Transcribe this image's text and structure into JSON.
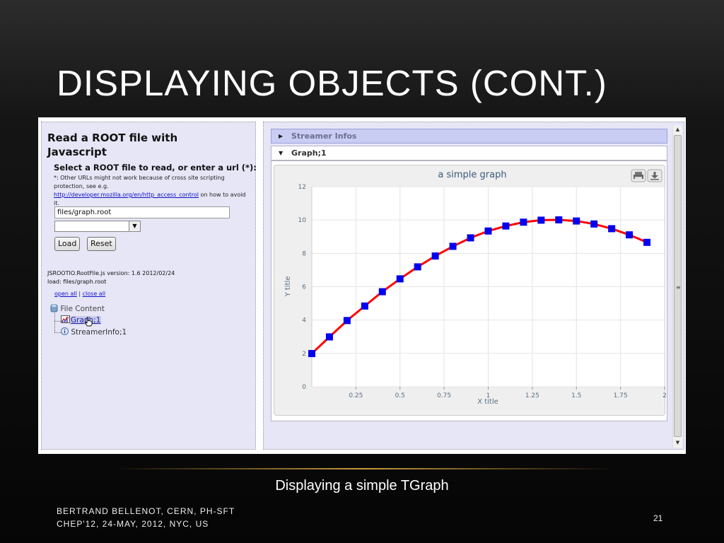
{
  "slide": {
    "title": "DISPLAYING OBJECTS (CONT.)",
    "caption": "Displaying a simple TGraph",
    "footer_line1": "BERTRAND BELLENOT, CERN, PH-SFT",
    "footer_line2": "CHEP'12, 24-MAY, 2012, NYC, US",
    "page_number": "21"
  },
  "left_panel": {
    "title": "Read a ROOT file with Javascript",
    "subtitle": "Select a ROOT file to read, or enter a url (*):",
    "note_prefix": "*: Other URLs might not work because of cross site scripting protection, see e.g. ",
    "note_link": "http://developer.mozilla.org/en/http_access_control",
    "note_suffix": " on how to avoid it.",
    "file_input_value": "files/graph.root",
    "combo_arrow": "▼",
    "load_button": "Load",
    "reset_button": "Reset",
    "version_text": "JSROOTIO.RootFile.js version: 1.6 2012/02/24",
    "load_text": "load: files/graph.root",
    "open_all": "open all",
    "separator": "|",
    "close_all": "close all",
    "tree": {
      "root_label": "File Content",
      "items": [
        "Graph;1",
        "StreamerInfo;1"
      ]
    }
  },
  "right_panel": {
    "accordion": [
      {
        "label": "Streamer Infos",
        "arrow": "▶"
      },
      {
        "label": "Graph;1",
        "arrow": "▼"
      }
    ]
  },
  "icons": {
    "folder": "database-icon",
    "graph": "graph-icon",
    "info": "info-icon",
    "print": "print-icon",
    "save": "download-icon",
    "cursor": "hand-cursor-icon"
  },
  "colors": {
    "line": "#ff0000",
    "marker": "#0000ee",
    "axis_text": "#5a6f82",
    "title_text": "#3b5a7a"
  },
  "chart_data": {
    "type": "line",
    "title": "a simple graph",
    "xlabel": "X title",
    "ylabel": "Y title",
    "xlim": [
      0,
      2
    ],
    "ylim": [
      0,
      12
    ],
    "xticks": [
      0.25,
      0.5,
      0.75,
      1,
      1.25,
      1.5,
      1.75,
      2
    ],
    "xtick_labels": [
      "0.25",
      "0.5",
      "0.75",
      "1",
      "1.25",
      "1.5",
      "1.75",
      "2"
    ],
    "yticks": [
      0,
      2,
      4,
      6,
      8,
      10,
      12
    ],
    "ytick_labels": [
      "0",
      "2",
      "4",
      "6",
      "8",
      "10",
      "12"
    ],
    "grid": true,
    "series": [
      {
        "x": [
          0,
          0.1,
          0.2,
          0.3,
          0.4,
          0.5,
          0.6,
          0.7,
          0.8,
          0.9,
          1.0,
          1.1,
          1.2,
          1.3,
          1.4,
          1.5,
          1.6,
          1.7,
          1.8,
          1.9
        ],
        "y": [
          1.99,
          2.99,
          3.97,
          4.84,
          5.7,
          6.47,
          7.19,
          7.84,
          8.42,
          8.93,
          9.34,
          9.64,
          9.87,
          9.99,
          10.01,
          9.94,
          9.76,
          9.48,
          9.11,
          8.66
        ],
        "color": "#ff0000",
        "marker_color": "#0000ee"
      }
    ]
  }
}
